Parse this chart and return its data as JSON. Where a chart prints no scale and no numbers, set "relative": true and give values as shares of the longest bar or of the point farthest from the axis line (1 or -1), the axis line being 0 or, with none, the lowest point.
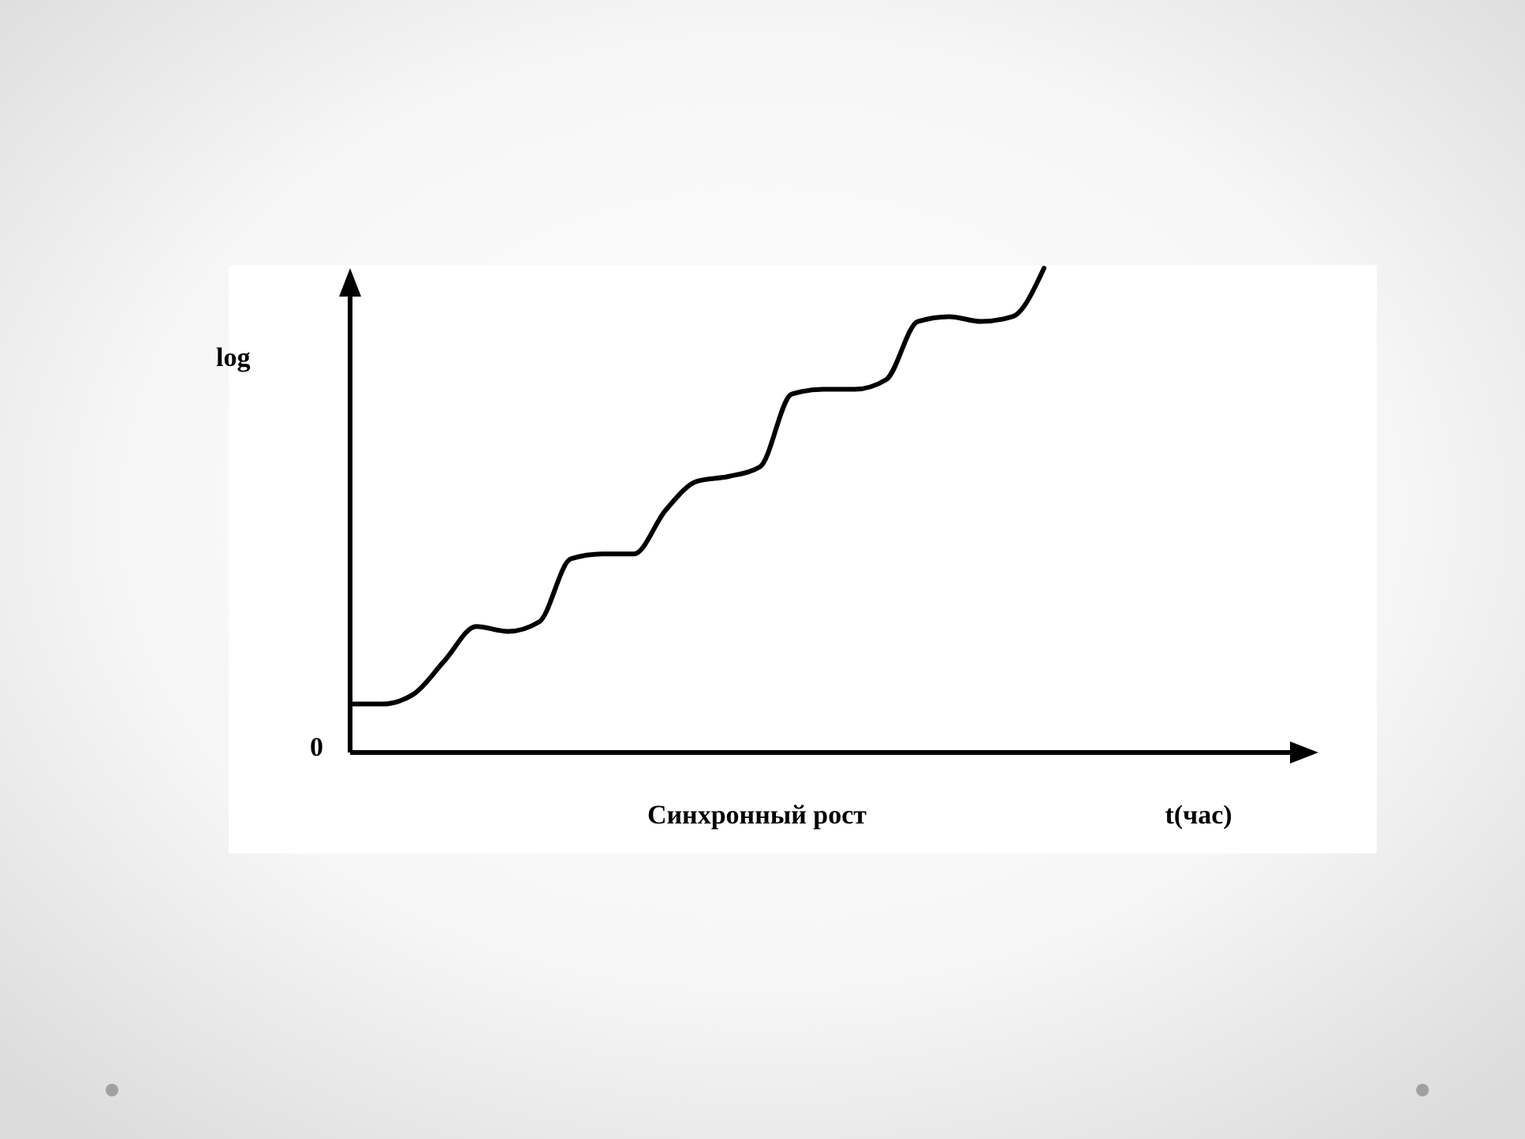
{
  "chart_data": {
    "type": "line",
    "relative": true,
    "ylabel": "log",
    "xlabel": "t(час)",
    "subtitle": "Синхронный рост",
    "annotations": [
      "0"
    ],
    "color": "#000000",
    "line_style": "solid",
    "marker": "none",
    "categories": [
      null,
      null,
      null,
      null,
      null,
      null,
      null,
      null,
      null,
      null,
      null,
      null,
      null,
      null,
      null,
      null,
      null,
      null,
      null,
      null,
      null,
      null,
      null,
      null,
      null,
      null,
      null,
      null,
      null,
      null,
      null
    ],
    "values": [
      0.1,
      0.1,
      0.12,
      0.19,
      0.26,
      0.25,
      0.27,
      0.4,
      0.41,
      0.41,
      0.5,
      0.56,
      0.57,
      0.59,
      0.74,
      0.75,
      0.75,
      0.77,
      0.89,
      0.9,
      0.89,
      0.9,
      1,
      null,
      null,
      null,
      null,
      null,
      null,
      null,
      null
    ]
  }
}
